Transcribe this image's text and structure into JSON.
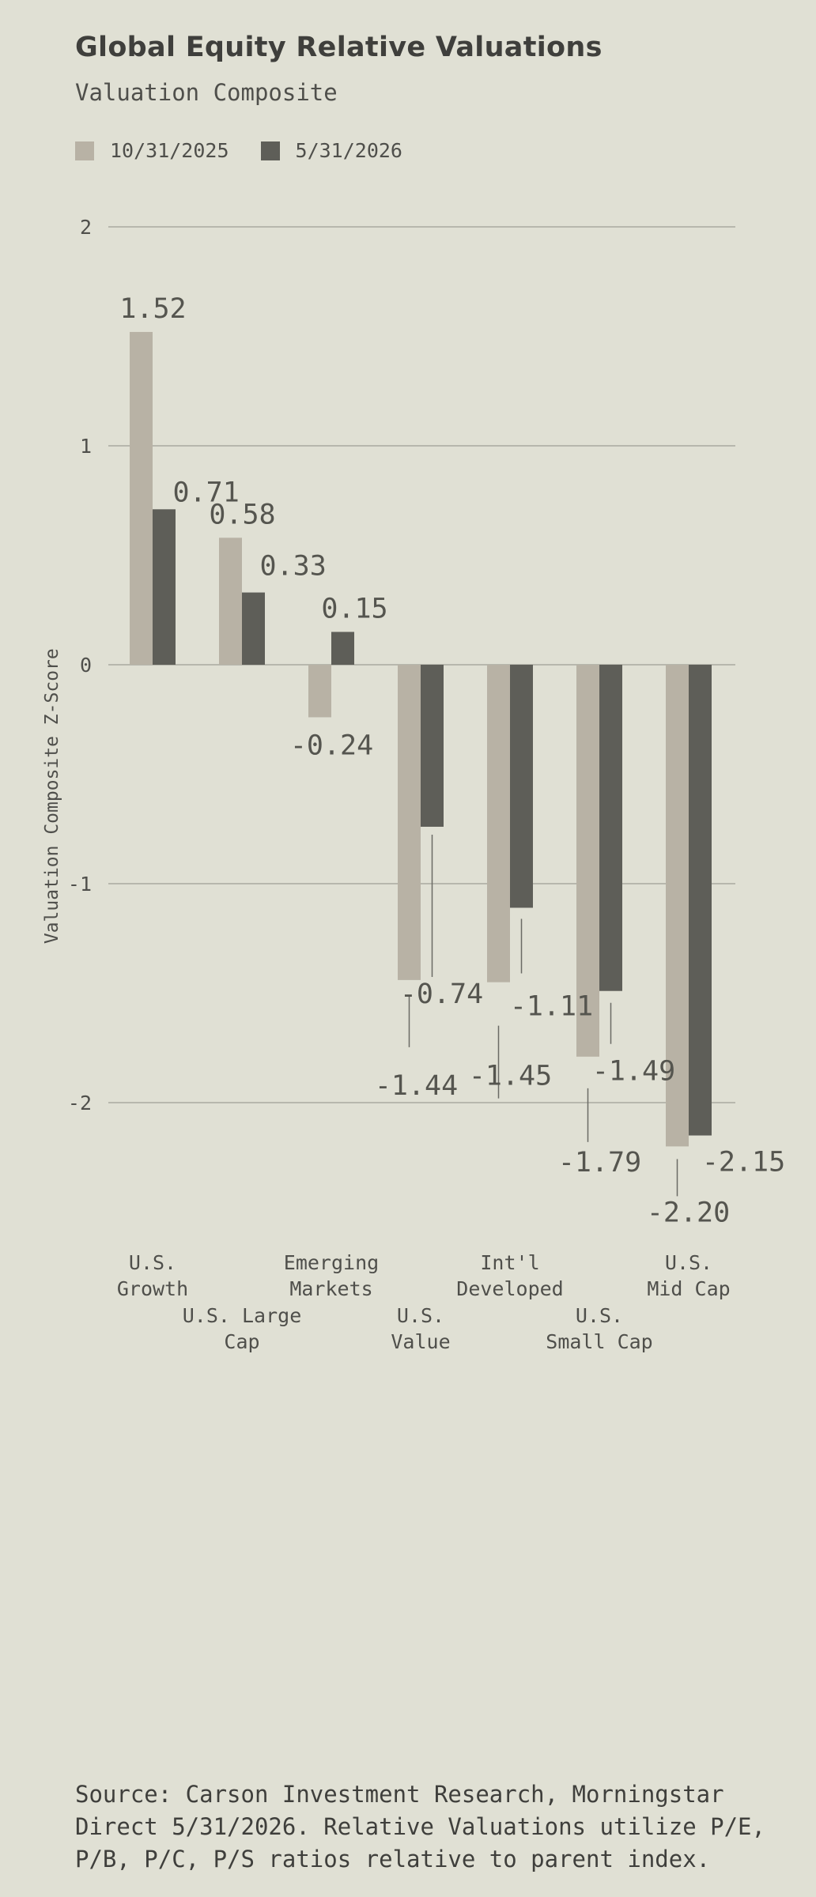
{
  "chart_data": {
    "type": "bar",
    "title": "Global Equity Relative Valuations",
    "subtitle": "Valuation Composite",
    "ylabel": "Valuation Composite Z-Score",
    "xlabel": "",
    "ylim": [
      -2.6,
      2
    ],
    "yticks": [
      2,
      1,
      0,
      -1,
      -2
    ],
    "grid": true,
    "legend_position": "top-left",
    "categories": [
      [
        "U.S.",
        "Growth"
      ],
      [
        "U.S. Large",
        "Cap"
      ],
      [
        "Emerging",
        "Markets"
      ],
      [
        "U.S.",
        "Value"
      ],
      [
        "Int'l",
        "Developed"
      ],
      [
        "U.S.",
        "Small Cap"
      ],
      [
        "U.S.",
        "Mid Cap"
      ]
    ],
    "series": [
      {
        "name": "10/31/2025",
        "color": "#b8b2a5",
        "values": [
          1.52,
          0.58,
          -0.24,
          -1.44,
          -1.45,
          -1.79,
          -2.2
        ],
        "labels": [
          "1.52",
          "0.58",
          "-0.24",
          "-1.44",
          "-1.45",
          "-1.79",
          "-2.20"
        ]
      },
      {
        "name": "5/31/2026",
        "color": "#5e5e58",
        "values": [
          0.71,
          0.33,
          0.15,
          -0.74,
          -1.11,
          -1.49,
          -2.15
        ],
        "labels": [
          "0.71",
          "0.33",
          "0.15",
          "-0.74",
          "-1.11",
          "-1.49",
          "-2.15"
        ]
      }
    ]
  },
  "source_text": "Source: Carson Investment Research, Morningstar Direct 5/31/2026. Relative Valuations utilize P/E, P/B, P/C, P/S ratios relative to parent index."
}
